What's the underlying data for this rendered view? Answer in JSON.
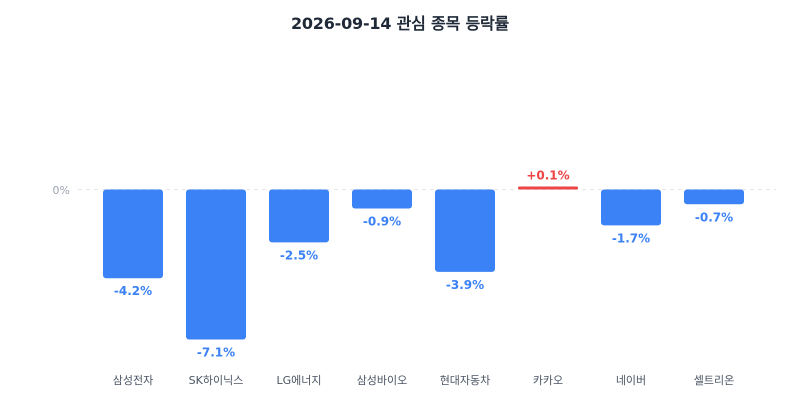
{
  "chart_data": {
    "type": "bar",
    "title": "2026-09-14 관심 종목 등락률",
    "categories": [
      "삼성전자",
      "SK하이닉스",
      "LG에너지",
      "삼성바이오",
      "현대자동차",
      "카카오",
      "네이버",
      "셀트리온"
    ],
    "values": [
      -4.2,
      -7.1,
      -2.5,
      -0.9,
      -3.9,
      0.1,
      -1.7,
      -0.7
    ],
    "value_labels": [
      "-4.2%",
      "-7.1%",
      "-2.5%",
      "-0.9%",
      "-3.9%",
      "+0.1%",
      "-1.7%",
      "-0.7%"
    ],
    "y_tick_labels": [
      "0%"
    ],
    "ylim": [
      -7.1,
      0.1
    ],
    "grid": false,
    "legend": "none",
    "colors": {
      "negative": "#3b82f6",
      "positive": "#ef4444",
      "negative_label": "#3b82f6",
      "positive_label": "#ef4444",
      "zero_line": "#e5e7eb",
      "tick_label": "#9ca3af",
      "category_label": "#4b5563"
    }
  }
}
